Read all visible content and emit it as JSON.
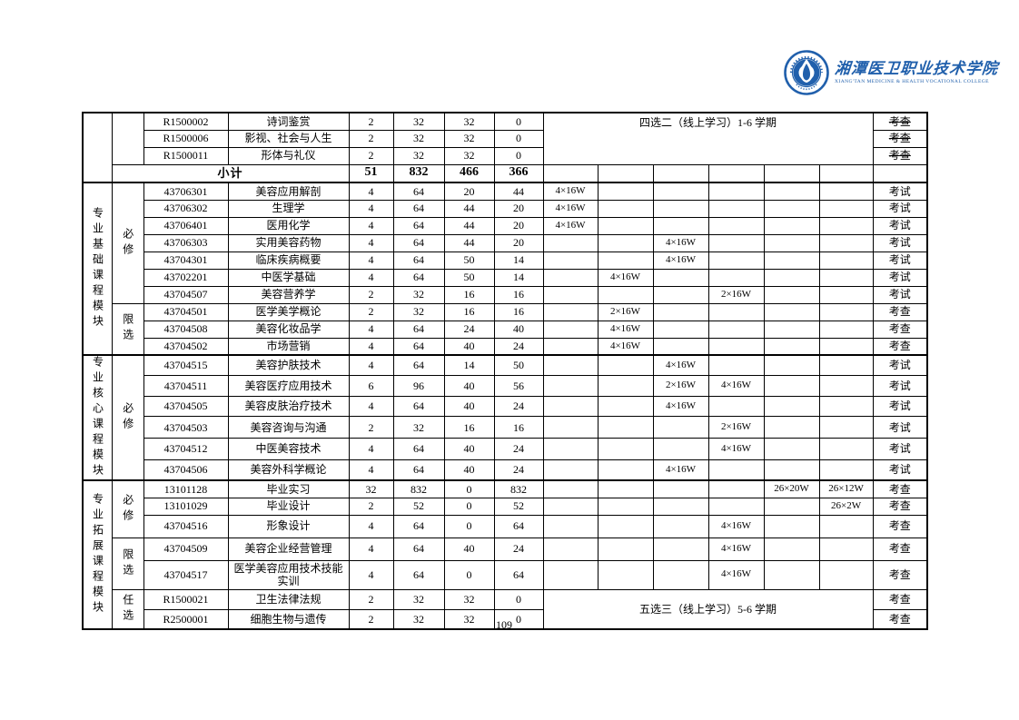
{
  "page": {
    "number": "109"
  },
  "header": {
    "college_name_cn": "湘潭医卫职业技术学院",
    "college_name_en": "XIANG'TAN MEDICINE & HEALTH VOCATIONAL COLLEGE",
    "brand_color": "#2160ac"
  },
  "table": {
    "sections": [
      {
        "module": "",
        "groups": [
          {
            "label": "",
            "rows": [
              0,
              1,
              2
            ]
          }
        ],
        "rows": [
          {
            "code": "R1500002",
            "name": "诗词鉴赏",
            "credit": "2",
            "total": "32",
            "theory": "32",
            "practice": "0",
            "sems": {},
            "exam": "考查",
            "struck": true
          },
          {
            "code": "R1500006",
            "name": "影视、社会与人生",
            "credit": "2",
            "total": "32",
            "theory": "32",
            "practice": "0",
            "sems": {},
            "exam": "考查",
            "struck": true
          },
          {
            "code": "R1500011",
            "name": "形体与礼仪",
            "credit": "2",
            "total": "32",
            "theory": "32",
            "practice": "0",
            "sems": {},
            "exam": "考查",
            "struck": true
          }
        ],
        "note": {
          "text": "四选二（线上学习）1-6 学期",
          "start": 0,
          "count": 3,
          "align": "top"
        },
        "subtotal": {
          "label": "小计",
          "credit": "51",
          "total": "832",
          "theory": "466",
          "practice": "366"
        }
      },
      {
        "module": "专业基础课程模块",
        "groups": [
          {
            "label": "必修",
            "rows": [
              0,
              1,
              2,
              3,
              4,
              5,
              6
            ]
          },
          {
            "label": "限选",
            "rows": [
              7,
              8,
              9
            ]
          }
        ],
        "rows": [
          {
            "code": "43706301",
            "name": "美容应用解剖",
            "credit": "4",
            "total": "64",
            "theory": "20",
            "practice": "44",
            "sems": {
              "1": "4×16W"
            },
            "exam": "考试"
          },
          {
            "code": "43706302",
            "name": "生理学",
            "credit": "4",
            "total": "64",
            "theory": "44",
            "practice": "20",
            "sems": {
              "1": "4×16W"
            },
            "exam": "考试"
          },
          {
            "code": "43706401",
            "name": "医用化学",
            "credit": "4",
            "total": "64",
            "theory": "44",
            "practice": "20",
            "sems": {
              "1": "4×16W"
            },
            "exam": "考试"
          },
          {
            "code": "43706303",
            "name": "实用美容药物",
            "credit": "4",
            "total": "64",
            "theory": "44",
            "practice": "20",
            "sems": {
              "3": "4×16W"
            },
            "exam": "考试"
          },
          {
            "code": "43704301",
            "name": "临床疾病概要",
            "credit": "4",
            "total": "64",
            "theory": "50",
            "practice": "14",
            "sems": {
              "3": "4×16W"
            },
            "exam": "考试"
          },
          {
            "code": "43702201",
            "name": "中医学基础",
            "credit": "4",
            "total": "64",
            "theory": "50",
            "practice": "14",
            "sems": {
              "2": "4×16W"
            },
            "exam": "考试"
          },
          {
            "code": "43704507",
            "name": "美容营养学",
            "credit": "2",
            "total": "32",
            "theory": "16",
            "practice": "16",
            "sems": {
              "4": "2×16W"
            },
            "exam": "考试"
          },
          {
            "code": "43704501",
            "name": "医学美学概论",
            "credit": "2",
            "total": "32",
            "theory": "16",
            "practice": "16",
            "sems": {
              "2": "2×16W"
            },
            "exam": "考查"
          },
          {
            "code": "43704508",
            "name": "美容化妆品学",
            "credit": "4",
            "total": "64",
            "theory": "24",
            "practice": "40",
            "sems": {
              "2": "4×16W"
            },
            "exam": "考查"
          },
          {
            "code": "43704502",
            "name": "市场营销",
            "credit": "4",
            "total": "64",
            "theory": "40",
            "practice": "24",
            "sems": {
              "2": "4×16W"
            },
            "exam": "考查"
          }
        ]
      },
      {
        "module": "专业核心课程模块",
        "groups": [
          {
            "label": "必修",
            "rows": [
              0,
              1,
              2,
              3,
              4,
              5
            ]
          }
        ],
        "rows": [
          {
            "code": "43704515",
            "name": "美容护肤技术",
            "credit": "4",
            "total": "64",
            "theory": "14",
            "practice": "50",
            "sems": {
              "3": "4×16W"
            },
            "exam": "考试"
          },
          {
            "code": "43704511",
            "name": "美容医疗应用技术",
            "credit": "6",
            "total": "96",
            "theory": "40",
            "practice": "56",
            "sems": {
              "3": "2×16W",
              "4": "4×16W"
            },
            "exam": "考试"
          },
          {
            "code": "43704505",
            "name": "美容皮肤治疗技术",
            "credit": "4",
            "total": "64",
            "theory": "40",
            "practice": "24",
            "sems": {
              "3": "4×16W"
            },
            "exam": "考试"
          },
          {
            "code": "43704503",
            "name": "美容咨询与沟通",
            "credit": "2",
            "total": "32",
            "theory": "16",
            "practice": "16",
            "sems": {
              "4": "2×16W"
            },
            "exam": "考试"
          },
          {
            "code": "43704512",
            "name": "中医美容技术",
            "credit": "4",
            "total": "64",
            "theory": "40",
            "practice": "24",
            "sems": {
              "4": "4×16W"
            },
            "exam": "考试"
          },
          {
            "code": "43704506",
            "name": "美容外科学概论",
            "credit": "4",
            "total": "64",
            "theory": "40",
            "practice": "24",
            "sems": {
              "3": "4×16W"
            },
            "exam": "考试"
          }
        ]
      },
      {
        "module": "专业拓展课程模块",
        "groups": [
          {
            "label": "必修",
            "rows": [
              0,
              1,
              2
            ]
          },
          {
            "label": "限选",
            "rows": [
              3,
              4
            ]
          },
          {
            "label": "任选",
            "rows": [
              5,
              6
            ]
          }
        ],
        "rows": [
          {
            "code": "13101128",
            "name": "毕业实习",
            "credit": "32",
            "total": "832",
            "theory": "0",
            "practice": "832",
            "sems": {
              "5": "26×20W",
              "6": "26×12W"
            },
            "exam": "考查"
          },
          {
            "code": "13101029",
            "name": "毕业设计",
            "credit": "2",
            "total": "52",
            "theory": "0",
            "practice": "52",
            "sems": {
              "6": "26×2W"
            },
            "exam": "考查"
          },
          {
            "code": "43704516",
            "name": "形象设计",
            "credit": "4",
            "total": "64",
            "theory": "0",
            "practice": "64",
            "sems": {
              "4": "4×16W"
            },
            "exam": "考查"
          },
          {
            "code": "43704509",
            "name": "美容企业经营管理",
            "credit": "4",
            "total": "64",
            "theory": "40",
            "practice": "24",
            "sems": {
              "4": "4×16W"
            },
            "exam": "考查"
          },
          {
            "code": "43704517",
            "name": "医学美容应用技术技能实训",
            "credit": "4",
            "total": "64",
            "theory": "0",
            "practice": "64",
            "sems": {
              "4": "4×16W"
            },
            "exam": "考查"
          },
          {
            "code": "R1500021",
            "name": "卫生法律法规",
            "credit": "2",
            "total": "32",
            "theory": "32",
            "practice": "0",
            "sems": {},
            "exam": "考查"
          },
          {
            "code": "R2500001",
            "name": "细胞生物与遗传",
            "credit": "2",
            "total": "32",
            "theory": "32",
            "practice": "0",
            "sems": {},
            "exam": "考查"
          }
        ],
        "note": {
          "text": "五选三（线上学习）5-6 学期",
          "start": 5,
          "count": 2
        }
      }
    ]
  }
}
